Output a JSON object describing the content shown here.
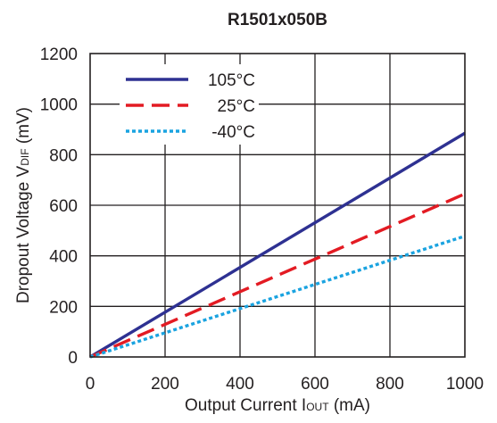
{
  "chart_data": {
    "type": "line",
    "title": "R1501x050B",
    "xlabel": {
      "main": "Output Current I",
      "sub": "OUT",
      "unit": " (mA)"
    },
    "ylabel": {
      "main": "Dropout  Voltage V",
      "sub": "DIF",
      "unit": " (mV)"
    },
    "xlim": [
      0,
      1000
    ],
    "ylim": [
      0,
      1200
    ],
    "xticks": [
      0,
      200,
      400,
      600,
      800,
      1000
    ],
    "yticks": [
      0,
      200,
      400,
      600,
      800,
      1000,
      1200
    ],
    "grid": true,
    "legend_position": "top-left",
    "series": [
      {
        "name": "105°C",
        "color": "#2e3192",
        "dash": "solid",
        "x": [
          0,
          1000
        ],
        "y": [
          0,
          885
        ]
      },
      {
        "name": "25°C",
        "color": "#e31b23",
        "dash": "long-dash",
        "x": [
          0,
          1000
        ],
        "y": [
          0,
          645
        ]
      },
      {
        "name": "-40°C",
        "color": "#1aa3e0",
        "dash": "dotted",
        "x": [
          0,
          1000
        ],
        "y": [
          0,
          478
        ]
      }
    ]
  }
}
